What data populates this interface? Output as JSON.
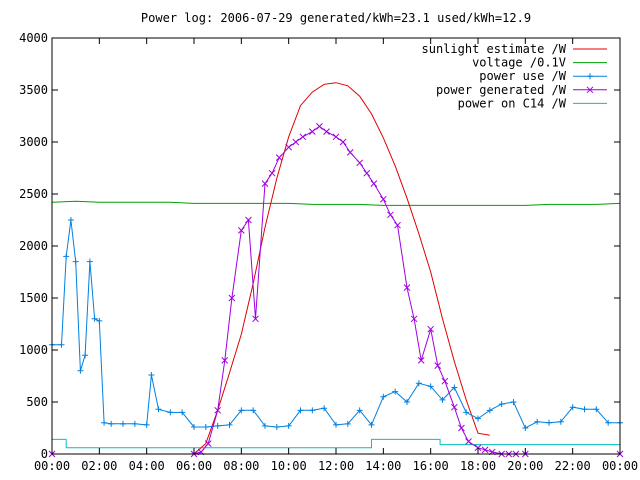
{
  "chart_data": {
    "type": "line",
    "title": "Power log: 2006-07-29 generated/kWh=23.1 used/kWh=12.9",
    "xlabel": "",
    "ylabel": "",
    "x_ticks": [
      "00:00",
      "02:00",
      "04:00",
      "06:00",
      "08:00",
      "10:00",
      "12:00",
      "14:00",
      "16:00",
      "18:00",
      "20:00",
      "22:00",
      "00:00"
    ],
    "y_ticks": [
      "0",
      "500",
      "1000",
      "1500",
      "2000",
      "2500",
      "3000",
      "3500",
      "4000"
    ],
    "xlim": [
      0,
      24
    ],
    "ylim": [
      0,
      4000
    ],
    "grid": false,
    "legend_position": "top-right",
    "series": [
      {
        "name": "sunlight estimate /W",
        "color": "#e00000",
        "style": "line",
        "x": [
          6.0,
          6.5,
          7.0,
          7.5,
          8.0,
          8.5,
          9.0,
          9.5,
          10.0,
          10.5,
          11.0,
          11.5,
          12.0,
          12.5,
          13.0,
          13.5,
          14.0,
          14.5,
          15.0,
          15.5,
          16.0,
          16.5,
          17.0,
          17.5,
          18.0,
          18.5
        ],
        "values": [
          0,
          100,
          420,
          780,
          1150,
          1640,
          2180,
          2650,
          3050,
          3350,
          3480,
          3555,
          3570,
          3540,
          3440,
          3270,
          3040,
          2770,
          2460,
          2120,
          1750,
          1300,
          890,
          520,
          200,
          180
        ]
      },
      {
        "name": "voltage /0.1V",
        "color": "#00a000",
        "style": "line",
        "x": [
          0,
          1,
          2,
          3,
          4,
          5,
          6,
          7,
          8,
          9,
          10,
          11,
          12,
          13,
          14,
          15,
          16,
          17,
          18,
          19,
          20,
          21,
          22,
          23,
          24
        ],
        "values": [
          2420,
          2430,
          2420,
          2420,
          2420,
          2420,
          2410,
          2410,
          2410,
          2410,
          2410,
          2400,
          2400,
          2400,
          2390,
          2390,
          2390,
          2390,
          2390,
          2390,
          2390,
          2400,
          2400,
          2400,
          2410
        ]
      },
      {
        "name": "power use /W",
        "color": "#0080e0",
        "style": "linespoints",
        "marker": "+",
        "x": [
          0,
          0.4,
          0.6,
          0.8,
          1.0,
          1.2,
          1.4,
          1.6,
          1.8,
          2.0,
          2.2,
          2.5,
          3.0,
          3.5,
          4.0,
          4.2,
          4.5,
          5.0,
          5.5,
          6.0,
          6.5,
          7.0,
          7.5,
          8.0,
          8.5,
          9.0,
          9.5,
          10.0,
          10.5,
          11.0,
          11.5,
          12.0,
          12.5,
          13.0,
          13.5,
          14.0,
          14.5,
          15.0,
          15.5,
          16.0,
          16.5,
          17.0,
          17.5,
          18.0,
          18.5,
          19.0,
          19.5,
          20.0,
          20.5,
          21.0,
          21.5,
          22.0,
          22.5,
          23.0,
          23.5,
          24.0
        ],
        "values": [
          1050,
          1050,
          1900,
          2250,
          1850,
          800,
          950,
          1850,
          1300,
          1280,
          300,
          290,
          290,
          290,
          280,
          760,
          430,
          400,
          400,
          260,
          260,
          270,
          280,
          420,
          420,
          270,
          260,
          270,
          420,
          420,
          440,
          280,
          290,
          420,
          280,
          550,
          600,
          500,
          680,
          650,
          520,
          640,
          400,
          340,
          420,
          480,
          500,
          250,
          310,
          300,
          310,
          450,
          430,
          430,
          300,
          300
        ]
      },
      {
        "name": "power generated /W",
        "color": "#a000e0",
        "style": "linespoints",
        "marker": "x",
        "x": [
          0,
          6.0,
          6.3,
          6.6,
          7.0,
          7.3,
          7.6,
          8.0,
          8.3,
          8.6,
          9.0,
          9.3,
          9.6,
          10.0,
          10.3,
          10.6,
          11.0,
          11.3,
          11.6,
          12.0,
          12.3,
          12.6,
          13.0,
          13.3,
          13.6,
          14.0,
          14.3,
          14.6,
          15.0,
          15.3,
          15.6,
          16.0,
          16.3,
          16.6,
          17.0,
          17.3,
          17.6,
          18.0,
          18.3,
          18.6,
          19.0,
          19.3,
          19.6,
          20.0,
          24.0
        ],
        "values": [
          0,
          0,
          20,
          100,
          420,
          900,
          1500,
          2150,
          2250,
          1300,
          2600,
          2700,
          2850,
          2950,
          3000,
          3050,
          3100,
          3150,
          3100,
          3050,
          3000,
          2900,
          2800,
          2700,
          2600,
          2450,
          2300,
          2200,
          1600,
          1300,
          900,
          1200,
          850,
          700,
          450,
          250,
          120,
          60,
          40,
          20,
          0,
          0,
          0,
          0,
          0
        ]
      },
      {
        "name": "power on C14 /W",
        "color": "#00c0c0",
        "style": "line",
        "x": [
          0,
          0.6,
          0.6,
          13.5,
          13.5,
          16.4,
          16.4,
          24.0
        ],
        "values": [
          140,
          140,
          60,
          60,
          140,
          140,
          90,
          90
        ]
      }
    ]
  }
}
